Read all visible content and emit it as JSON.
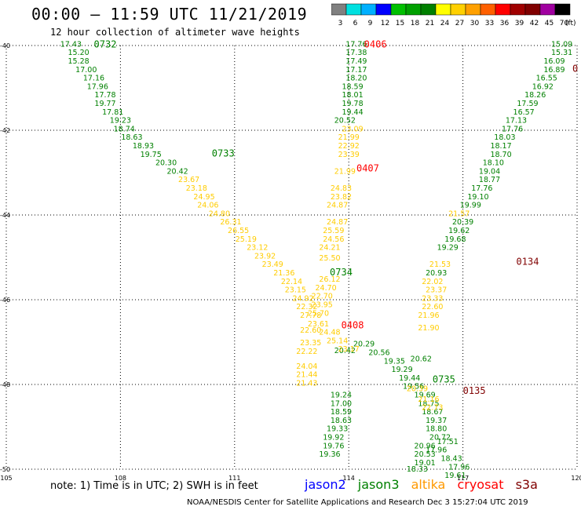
{
  "header": {
    "title": "00:00 — 11:59 UTC 11/21/2019",
    "subtitle": "12 hour collection of altimeter wave heights"
  },
  "legend": {
    "labels": [
      "3",
      "6",
      "9",
      "12",
      "15",
      "18",
      "21",
      "24",
      "27",
      "30",
      "33",
      "36",
      "39",
      "42",
      "45",
      "70"
    ],
    "unit": "(ft)",
    "colors": [
      "#808080",
      "#00e0e0",
      "#00b0ff",
      "#0000ff",
      "#00c000",
      "#00a000",
      "#008000",
      "#ffff00",
      "#ffd000",
      "#ffa000",
      "#ff6000",
      "#ff0000",
      "#a00000",
      "#800000",
      "#a000a0",
      "#000000"
    ]
  },
  "footer": {
    "note": "note:  1) Time is in UTC;  2) SWH is in feet",
    "credit": "NOAA/NESDIS Center for Satellite Applications and Research    Dec  3 15:27:04 UTC 2019",
    "satellites": [
      {
        "name": "jason2",
        "color": "#0000ff"
      },
      {
        "name": "jason3",
        "color": "#008000"
      },
      {
        "name": "altika",
        "color": "#ff9900"
      },
      {
        "name": "cryosat",
        "color": "#ff0000"
      },
      {
        "name": "s3a",
        "color": "#800000"
      }
    ]
  },
  "chart_data": {
    "type": "scatter",
    "xlim": [
      105,
      120
    ],
    "ylim": [
      -50,
      -40
    ],
    "xticks": [
      105,
      108,
      111,
      114,
      117,
      120
    ],
    "yticks": [
      -40,
      -42,
      -44,
      -46,
      -48,
      -50
    ],
    "xtick_labels": [
      "105",
      "108",
      "111",
      "114",
      "117",
      "120"
    ],
    "ytick_labels": [
      "-40",
      "-42",
      "-44",
      "-46",
      "-48",
      "-50"
    ],
    "grid": true,
    "time_labels": [
      {
        "text": "0732",
        "x": 107.6,
        "y": -39.97,
        "color": "#008000"
      },
      {
        "text": "0733",
        "x": 110.7,
        "y": -42.55,
        "color": "#008000"
      },
      {
        "text": "0734",
        "x": 113.8,
        "y": -45.35,
        "color": "#008000"
      },
      {
        "text": "0735",
        "x": 116.5,
        "y": -47.88,
        "color": "#008000"
      },
      {
        "text": "0406",
        "x": 114.7,
        "y": -39.97,
        "color": "#ff0000"
      },
      {
        "text": "0407",
        "x": 114.5,
        "y": -42.9,
        "color": "#ff0000"
      },
      {
        "text": "0408",
        "x": 114.1,
        "y": -46.6,
        "color": "#ff0000"
      },
      {
        "text": "0134",
        "x": 118.7,
        "y": -45.1,
        "color": "#800000"
      },
      {
        "text": "0135",
        "x": 117.3,
        "y": -48.15,
        "color": "#800000"
      },
      {
        "text": "0",
        "x": 119.95,
        "y": -40.55,
        "color": "#800000"
      }
    ],
    "series": [
      {
        "name": "jason3",
        "color_hex": "#008000",
        "points": [
          {
            "x": 106.7,
            "y": -39.97,
            "v": "17.43"
          },
          {
            "x": 106.9,
            "y": -40.17,
            "v": "15.20"
          },
          {
            "x": 106.9,
            "y": -40.37,
            "v": "15.28"
          },
          {
            "x": 107.1,
            "y": -40.57,
            "v": "17.00"
          },
          {
            "x": 107.3,
            "y": -40.77,
            "v": "17.16"
          },
          {
            "x": 107.4,
            "y": -40.97,
            "v": "17.96"
          },
          {
            "x": 107.6,
            "y": -41.17,
            "v": "17.78"
          },
          {
            "x": 107.6,
            "y": -41.37,
            "v": "19.77"
          },
          {
            "x": 107.8,
            "y": -41.57,
            "v": "17.81"
          },
          {
            "x": 108.0,
            "y": -41.77,
            "v": "19.23"
          },
          {
            "x": 108.1,
            "y": -41.97,
            "v": "18.74"
          },
          {
            "x": 108.3,
            "y": -42.17,
            "v": "18.63"
          },
          {
            "x": 108.6,
            "y": -42.37,
            "v": "18.93"
          },
          {
            "x": 108.8,
            "y": -42.57,
            "v": "19.75"
          },
          {
            "x": 109.2,
            "y": -42.77,
            "v": "20.30"
          },
          {
            "x": 109.5,
            "y": -42.97,
            "v": "20.42"
          },
          {
            "x": 114.4,
            "y": -47.05,
            "v": "20.29"
          },
          {
            "x": 114.8,
            "y": -47.25,
            "v": "20.56"
          },
          {
            "x": 115.2,
            "y": -47.45,
            "v": "19.35"
          },
          {
            "x": 115.4,
            "y": -47.65,
            "v": "19.29"
          },
          {
            "x": 115.6,
            "y": -47.85,
            "v": "19.44"
          },
          {
            "x": 115.7,
            "y": -48.05,
            "v": "19.56"
          },
          {
            "x": 116.0,
            "y": -48.25,
            "v": "19.69"
          },
          {
            "x": 116.1,
            "y": -48.45,
            "v": "18.75"
          },
          {
            "x": 116.2,
            "y": -48.65,
            "v": "18.67"
          },
          {
            "x": 116.3,
            "y": -48.85,
            "v": "19.37"
          },
          {
            "x": 116.3,
            "y": -49.05,
            "v": "18.80"
          },
          {
            "x": 116.4,
            "y": -49.25,
            "v": "20.72"
          },
          {
            "x": 116.0,
            "y": -49.45,
            "v": "20.96"
          },
          {
            "x": 116.0,
            "y": -49.65,
            "v": "20.53"
          },
          {
            "x": 116.0,
            "y": -49.85,
            "v": "19.01"
          },
          {
            "x": 115.8,
            "y": -50.0,
            "v": "18.33"
          },
          {
            "x": 114.2,
            "y": -39.97,
            "v": "17.76"
          },
          {
            "x": 114.2,
            "y": -40.17,
            "v": "17.38"
          },
          {
            "x": 114.2,
            "y": -40.37,
            "v": "17.49"
          },
          {
            "x": 114.2,
            "y": -40.57,
            "v": "17.17"
          },
          {
            "x": 114.2,
            "y": -40.77,
            "v": "18.20"
          },
          {
            "x": 114.1,
            "y": -40.97,
            "v": "18.59"
          },
          {
            "x": 114.1,
            "y": -41.17,
            "v": "18.01"
          },
          {
            "x": 114.1,
            "y": -41.37,
            "v": "19.78"
          },
          {
            "x": 114.1,
            "y": -41.57,
            "v": "19.44"
          },
          {
            "x": 113.9,
            "y": -41.77,
            "v": "20.52"
          },
          {
            "x": 113.9,
            "y": -47.2,
            "v": "20.42"
          },
          {
            "x": 113.8,
            "y": -48.25,
            "v": "19.24"
          },
          {
            "x": 113.8,
            "y": -48.45,
            "v": "17.00"
          },
          {
            "x": 113.8,
            "y": -48.65,
            "v": "18.59"
          },
          {
            "x": 113.8,
            "y": -48.85,
            "v": "18.63"
          },
          {
            "x": 113.7,
            "y": -49.05,
            "v": "19.33"
          },
          {
            "x": 113.6,
            "y": -49.25,
            "v": "19.92"
          },
          {
            "x": 113.6,
            "y": -49.45,
            "v": "19.76"
          },
          {
            "x": 113.5,
            "y": -49.65,
            "v": "19.36"
          },
          {
            "x": 119.6,
            "y": -39.97,
            "v": "15.09"
          },
          {
            "x": 119.6,
            "y": -40.17,
            "v": "15.31"
          },
          {
            "x": 119.4,
            "y": -40.37,
            "v": "16.09"
          },
          {
            "x": 119.4,
            "y": -40.57,
            "v": "16.89"
          },
          {
            "x": 119.2,
            "y": -40.77,
            "v": "16.55"
          },
          {
            "x": 119.1,
            "y": -40.97,
            "v": "16.92"
          },
          {
            "x": 118.9,
            "y": -41.17,
            "v": "18.26"
          },
          {
            "x": 118.7,
            "y": -41.37,
            "v": "17.59"
          },
          {
            "x": 118.6,
            "y": -41.57,
            "v": "16.57"
          },
          {
            "x": 118.4,
            "y": -41.77,
            "v": "17.13"
          },
          {
            "x": 118.3,
            "y": -41.97,
            "v": "17.76"
          },
          {
            "x": 118.1,
            "y": -42.17,
            "v": "18.03"
          },
          {
            "x": 118.0,
            "y": -42.37,
            "v": "18.17"
          },
          {
            "x": 118.0,
            "y": -42.57,
            "v": "18.70"
          },
          {
            "x": 117.8,
            "y": -42.77,
            "v": "18.10"
          },
          {
            "x": 117.7,
            "y": -42.97,
            "v": "19.04"
          },
          {
            "x": 117.7,
            "y": -43.17,
            "v": "18.77"
          },
          {
            "x": 117.5,
            "y": -43.37,
            "v": "17.76"
          },
          {
            "x": 117.4,
            "y": -43.57,
            "v": "19.10"
          },
          {
            "x": 117.2,
            "y": -43.77,
            "v": "19.99"
          },
          {
            "x": 117.0,
            "y": -44.17,
            "v": "20.39"
          },
          {
            "x": 116.9,
            "y": -44.37,
            "v": "19.62"
          },
          {
            "x": 116.8,
            "y": -44.57,
            "v": "19.68"
          },
          {
            "x": 116.6,
            "y": -44.77,
            "v": "19.29"
          },
          {
            "x": 116.3,
            "y": -45.37,
            "v": "20.93"
          },
          {
            "x": 115.9,
            "y": -47.4,
            "v": "20.62"
          },
          {
            "x": 116.6,
            "y": -49.35,
            "v": "17.51"
          },
          {
            "x": 116.3,
            "y": -49.55,
            "v": "17.96"
          },
          {
            "x": 116.7,
            "y": -49.75,
            "v": "18.43"
          },
          {
            "x": 116.9,
            "y": -49.95,
            "v": "17.96"
          },
          {
            "x": 116.8,
            "y": -50.15,
            "v": "19.61"
          }
        ]
      },
      {
        "name": "altika",
        "color_hex": "#ffcc00",
        "points": [
          {
            "x": 109.8,
            "y": -43.17,
            "v": "23.67"
          },
          {
            "x": 110.0,
            "y": -43.37,
            "v": "23.18"
          },
          {
            "x": 110.2,
            "y": -43.57,
            "v": "24.95"
          },
          {
            "x": 110.3,
            "y": -43.77,
            "v": "24.06"
          },
          {
            "x": 110.6,
            "y": -43.97,
            "v": "24.80"
          },
          {
            "x": 110.9,
            "y": -44.17,
            "v": "26.31"
          },
          {
            "x": 111.1,
            "y": -44.37,
            "v": "26.55"
          },
          {
            "x": 111.3,
            "y": -44.57,
            "v": "25.19"
          },
          {
            "x": 111.6,
            "y": -44.77,
            "v": "23.12"
          },
          {
            "x": 111.8,
            "y": -44.97,
            "v": "23.92"
          },
          {
            "x": 112.0,
            "y": -45.17,
            "v": "23.49"
          },
          {
            "x": 112.3,
            "y": -45.37,
            "v": "21.36"
          },
          {
            "x": 112.5,
            "y": -45.57,
            "v": "22.14"
          },
          {
            "x": 112.6,
            "y": -45.77,
            "v": "23.15"
          },
          {
            "x": 112.8,
            "y": -45.97,
            "v": "24.92"
          },
          {
            "x": 112.9,
            "y": -46.17,
            "v": "22.32"
          },
          {
            "x": 113.0,
            "y": -46.37,
            "v": "27.78"
          },
          {
            "x": 113.2,
            "y": -46.57,
            "v": "23.61"
          },
          {
            "x": 113.5,
            "y": -46.77,
            "v": "24.48"
          },
          {
            "x": 113.7,
            "y": -46.97,
            "v": "25.14"
          },
          {
            "x": 114.0,
            "y": -47.17,
            "v": "23.17"
          },
          {
            "x": 114.1,
            "y": -41.97,
            "v": "23.09"
          },
          {
            "x": 114.0,
            "y": -42.17,
            "v": "21.99"
          },
          {
            "x": 114.0,
            "y": -42.37,
            "v": "22.92"
          },
          {
            "x": 114.0,
            "y": -42.57,
            "v": "23.39"
          },
          {
            "x": 113.9,
            "y": -42.97,
            "v": "21.99"
          },
          {
            "x": 113.8,
            "y": -43.37,
            "v": "24.83"
          },
          {
            "x": 113.8,
            "y": -43.57,
            "v": "23.82"
          },
          {
            "x": 113.7,
            "y": -43.77,
            "v": "24.87"
          },
          {
            "x": 113.7,
            "y": -44.17,
            "v": "24.87"
          },
          {
            "x": 113.6,
            "y": -44.37,
            "v": "25.59"
          },
          {
            "x": 113.6,
            "y": -44.57,
            "v": "24.56"
          },
          {
            "x": 113.5,
            "y": -44.77,
            "v": "24.21"
          },
          {
            "x": 113.5,
            "y": -45.02,
            "v": "25.50"
          },
          {
            "x": 113.5,
            "y": -45.52,
            "v": "26.12"
          },
          {
            "x": 113.4,
            "y": -45.72,
            "v": "24.70"
          },
          {
            "x": 113.3,
            "y": -45.92,
            "v": "22.70"
          },
          {
            "x": 113.3,
            "y": -46.12,
            "v": "23.95"
          },
          {
            "x": 113.2,
            "y": -46.32,
            "v": "25.70"
          },
          {
            "x": 113.0,
            "y": -46.72,
            "v": "22.60"
          },
          {
            "x": 113.0,
            "y": -47.02,
            "v": "23.35"
          },
          {
            "x": 112.9,
            "y": -47.22,
            "v": "22.22"
          },
          {
            "x": 112.9,
            "y": -47.57,
            "v": "24.04"
          },
          {
            "x": 112.9,
            "y": -47.77,
            "v": "21.44"
          },
          {
            "x": 112.9,
            "y": -47.97,
            "v": "21.43"
          },
          {
            "x": 116.9,
            "y": -43.97,
            "v": "21.57"
          },
          {
            "x": 116.4,
            "y": -45.17,
            "v": "21.53"
          },
          {
            "x": 116.2,
            "y": -45.57,
            "v": "22.02"
          },
          {
            "x": 116.3,
            "y": -45.77,
            "v": "23.37"
          },
          {
            "x": 116.2,
            "y": -45.97,
            "v": "23.33"
          },
          {
            "x": 116.2,
            "y": -46.17,
            "v": "22.60"
          },
          {
            "x": 116.1,
            "y": -46.37,
            "v": "21.96"
          },
          {
            "x": 116.1,
            "y": -46.67,
            "v": "21.90"
          },
          {
            "x": 115.8,
            "y": -48.1,
            "v": "20.39"
          },
          {
            "x": 116.1,
            "y": -48.35,
            "v": "21.16"
          },
          {
            "x": 116.2,
            "y": -48.55,
            "v": "22.73"
          }
        ]
      }
    ]
  }
}
